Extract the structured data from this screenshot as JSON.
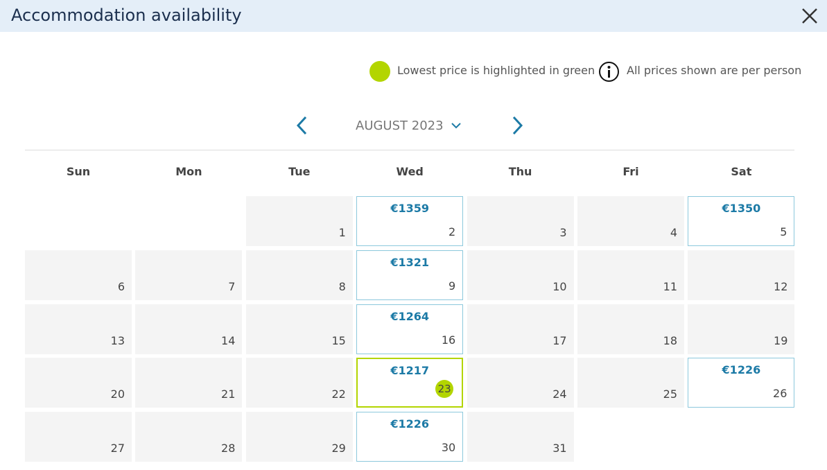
{
  "header": {
    "title": "Accommodation availability"
  },
  "legend": {
    "lowest": "Lowest price is highlighted in green",
    "info": "All prices shown are per person"
  },
  "calendar": {
    "month": "AUGUST 2023",
    "weekdays": [
      "Sun",
      "Mon",
      "Tue",
      "Wed",
      "Thu",
      "Fri",
      "Sat"
    ],
    "weeks": [
      [
        null,
        null,
        {
          "day": 1
        },
        {
          "day": 2,
          "price": "€1359"
        },
        {
          "day": 3
        },
        {
          "day": 4
        },
        {
          "day": 5,
          "price": "€1350"
        }
      ],
      [
        {
          "day": 6
        },
        {
          "day": 7
        },
        {
          "day": 8
        },
        {
          "day": 9,
          "price": "€1321"
        },
        {
          "day": 10
        },
        {
          "day": 11
        },
        {
          "day": 12
        }
      ],
      [
        {
          "day": 13
        },
        {
          "day": 14
        },
        {
          "day": 15
        },
        {
          "day": 16,
          "price": "€1264"
        },
        {
          "day": 17
        },
        {
          "day": 18
        },
        {
          "day": 19
        }
      ],
      [
        {
          "day": 20
        },
        {
          "day": 21
        },
        {
          "day": 22
        },
        {
          "day": 23,
          "price": "€1217",
          "highlight": true
        },
        {
          "day": 24
        },
        {
          "day": 25
        },
        {
          "day": 26,
          "price": "€1226"
        }
      ],
      [
        {
          "day": 27
        },
        {
          "day": 28
        },
        {
          "day": 29
        },
        {
          "day": 30,
          "price": "€1226"
        },
        {
          "day": 31
        },
        null,
        null
      ]
    ]
  }
}
